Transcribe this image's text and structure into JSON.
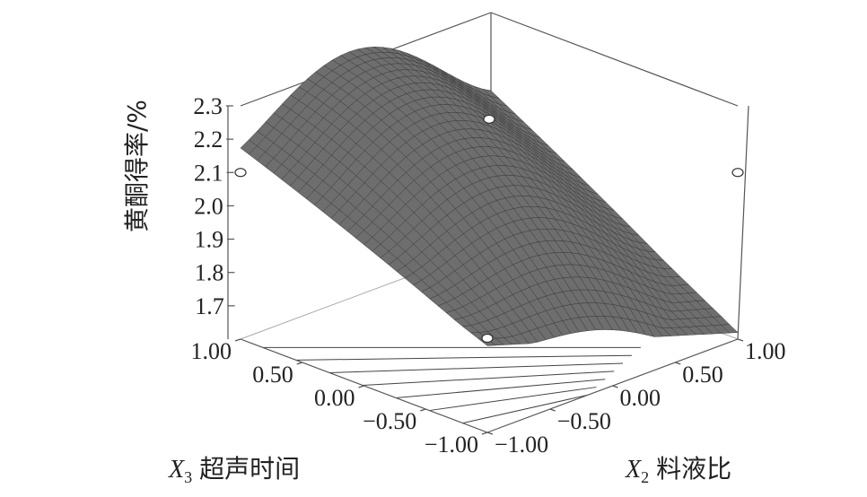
{
  "chart_data": {
    "type": "surface",
    "title": "",
    "zlabel": "黄酮得率/%",
    "x_axis": {
      "var": "X",
      "sub": "2",
      "name": "料液比",
      "range": [
        -1.0,
        1.0
      ],
      "ticks": [
        "-1.00",
        "-0.50",
        "0.00",
        "0.50",
        "1.00"
      ]
    },
    "y_axis": {
      "var": "X",
      "sub": "3",
      "name": "超声时间",
      "range": [
        -1.0,
        1.0
      ],
      "ticks": [
        "-1.00",
        "-0.50",
        "0.00",
        "0.50",
        "1.00"
      ]
    },
    "z_axis": {
      "range": [
        1.6,
        2.3
      ],
      "ticks": [
        "1.7",
        "1.8",
        "1.9",
        "2.0",
        "2.1",
        "2.2",
        "2.3"
      ]
    },
    "corner_values": [
      {
        "x2": 1.0,
        "x3": -1.0,
        "z": 1.62
      },
      {
        "x2": -1.0,
        "x3": -1.0,
        "z": 1.86
      },
      {
        "x2": 1.0,
        "x3": 1.0,
        "z": 2.06
      },
      {
        "x2": -1.0,
        "x3": 1.0,
        "z": 2.16
      }
    ],
    "peak_value": {
      "x2": -0.15,
      "x3": 0.5,
      "z": 2.28
    },
    "design_points": [
      {
        "x2": -1.0,
        "x3": 1.0,
        "z": 2.1
      },
      {
        "x2": 1.0,
        "x3": -1.0,
        "z": 2.1
      },
      {
        "x2": 0.0,
        "x3": 0.0,
        "z": 2.26
      },
      {
        "x2": -1.0,
        "x3": -1.0,
        "z": 1.6
      }
    ],
    "surface_color": "#6e6e6e",
    "grid_color": "#3a3a3a",
    "contours_on_floor": true
  }
}
